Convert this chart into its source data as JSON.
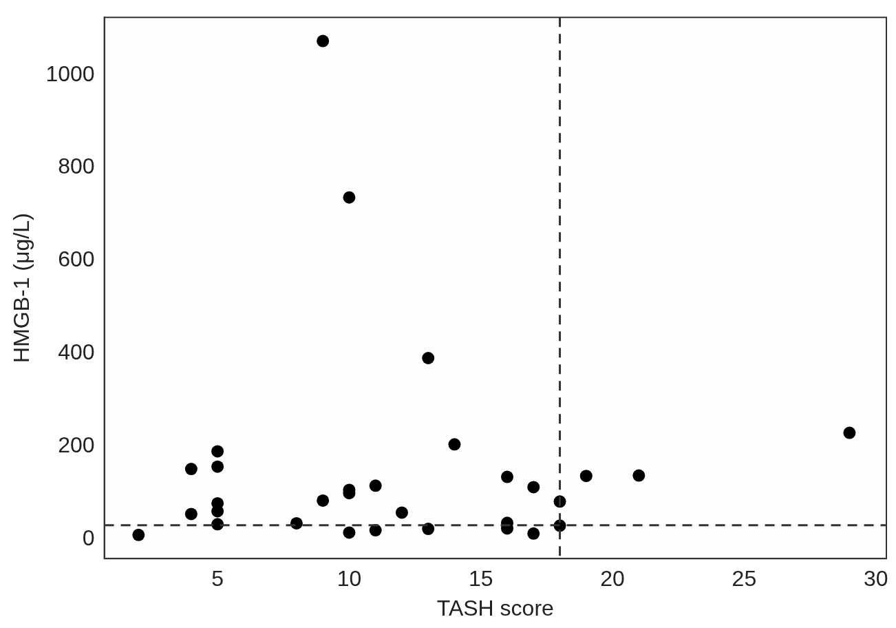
{
  "chart_data": {
    "type": "scatter",
    "xlabel": "TASH score",
    "ylabel": "HMGB-1 (μg/L)",
    "xlim": [
      0.7,
      30.4
    ],
    "xticks": [
      5,
      10,
      15,
      20,
      25,
      30
    ],
    "ylim": [
      -42,
      1124
    ],
    "yticks": [
      0,
      200,
      400,
      600,
      800,
      1000
    ],
    "grid": false,
    "legend": false,
    "marker": "circle",
    "series": [
      {
        "color": "#000000",
        "x": [
          2,
          4,
          4,
          5,
          5,
          5,
          5,
          5,
          8,
          9,
          9,
          10,
          10,
          10,
          10,
          11,
          11,
          12,
          13,
          13,
          14,
          16,
          16,
          16,
          17,
          17,
          18,
          18,
          19,
          21,
          29
        ],
        "values": [
          9,
          151,
          54,
          189,
          156,
          77,
          60,
          32,
          34,
          83,
          1073,
          106,
          99,
          14,
          736,
          115,
          19,
          57,
          22,
          390,
          204,
          134,
          35,
          23,
          112,
          12,
          81,
          29,
          136,
          137,
          229
        ]
      }
    ],
    "ref_lines": [
      {
        "axis": "x",
        "value": 18,
        "color": "#333333",
        "line_style": "dashed"
      },
      {
        "axis": "y",
        "value": 30,
        "color": "#333333",
        "line_style": "dashed"
      }
    ]
  }
}
